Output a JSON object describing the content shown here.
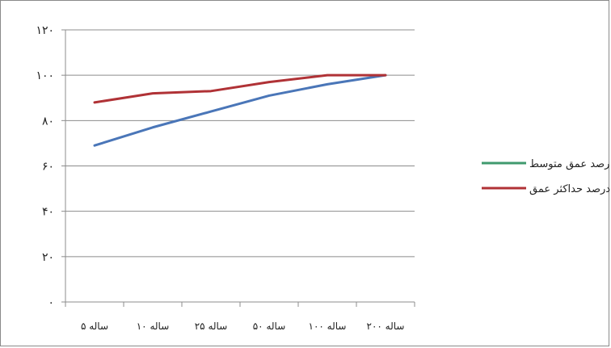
{
  "chart_data": {
    "type": "line",
    "categories": [
      "۵ ساله",
      "۱۰ ساله",
      "۲۵ ساله",
      "۵۰ ساله",
      "۱۰۰ ساله",
      "۲۰۰ ساله"
    ],
    "y_ticks": [
      "۰",
      "۲۰",
      "۴۰",
      "۶۰",
      "۸۰",
      "۱۰۰",
      "۱۲۰"
    ],
    "ylim": [
      0,
      120
    ],
    "grid": true,
    "legend_position": "right",
    "series": [
      {
        "name": "درصد عمق متوسط",
        "values": [
          69,
          77,
          84,
          91,
          96,
          100
        ],
        "color": "#4a76b8",
        "legend_color": "#3f9a6e"
      },
      {
        "name": "درصد حداکثر عمق",
        "values": [
          88,
          92,
          93,
          97,
          100,
          100
        ],
        "color": "#b03236",
        "legend_color": "#b03236"
      }
    ]
  }
}
